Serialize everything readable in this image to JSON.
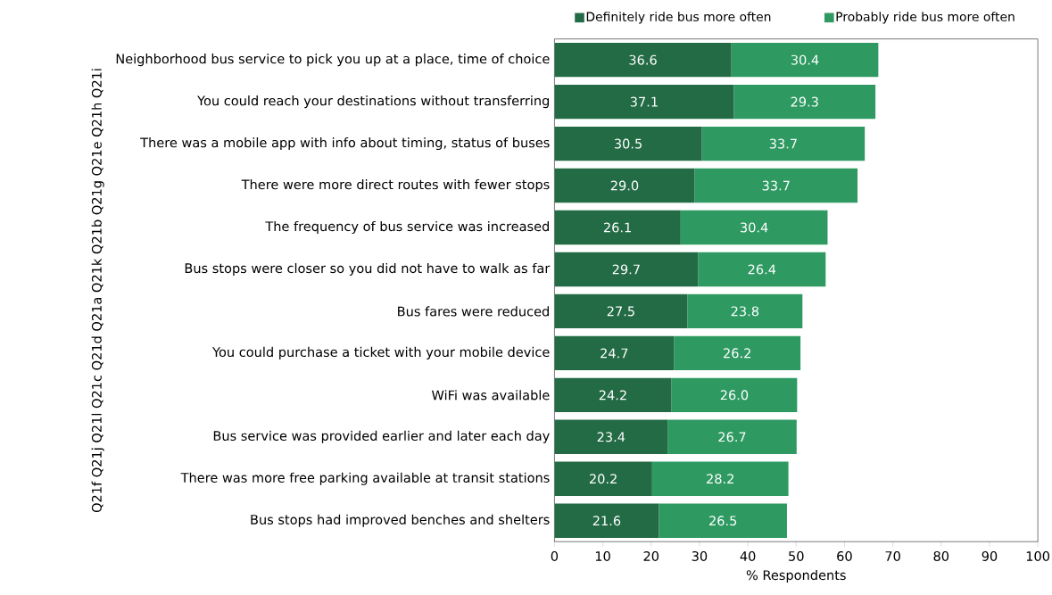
{
  "chart_data": {
    "type": "bar",
    "orientation": "horizontal",
    "stacked": true,
    "xlabel": "% Respondents",
    "ylabel": "Q21f Q21j Q21l Q21c Q21d Q21a Q21k Q21b Q21g Q21e Q21h Q21i",
    "categories": [
      "Neighborhood bus service to pick you up at a place, time of choice",
      "You could reach your destinations without transferring",
      "There was a mobile app with info about timing, status of buses",
      "There were more direct routes with fewer stops",
      "The frequency of bus service was increased",
      "Bus stops were closer so you did not have to walk as far",
      "Bus fares were reduced",
      "You could purchase a ticket with your mobile device",
      "WiFi was available",
      "Bus service was provided earlier and later each day",
      "There was more free parking available at transit stations",
      "Bus stops had improved benches and shelters"
    ],
    "series": [
      {
        "name": "Definitely ride bus more often",
        "color": "#236b45",
        "values": [
          36.6,
          37.1,
          30.5,
          29.0,
          26.1,
          29.7,
          27.5,
          24.7,
          24.2,
          23.4,
          20.2,
          21.6
        ],
        "value_labels": [
          "36.6",
          "37.1",
          "30.5",
          "29.0",
          "26.1",
          "29.7",
          "27.5",
          "24.7",
          "24.2",
          "23.4",
          "20.2",
          "21.6"
        ]
      },
      {
        "name": "Probably ride bus more often",
        "color": "#2e9a62",
        "values": [
          30.4,
          29.3,
          33.7,
          33.7,
          30.4,
          26.4,
          23.8,
          26.2,
          26.0,
          26.7,
          28.2,
          26.5
        ],
        "value_labels": [
          "30.4",
          "29.3",
          "33.7",
          "33.7",
          "30.4",
          "26.4",
          "23.8",
          "26.2",
          "26.0",
          "26.7",
          "28.2",
          "26.5"
        ]
      }
    ],
    "xlim": [
      0,
      100
    ],
    "xticks": [
      0,
      10,
      20,
      30,
      40,
      50,
      60,
      70,
      80,
      90,
      100
    ],
    "legend": "top",
    "grid": false
  }
}
